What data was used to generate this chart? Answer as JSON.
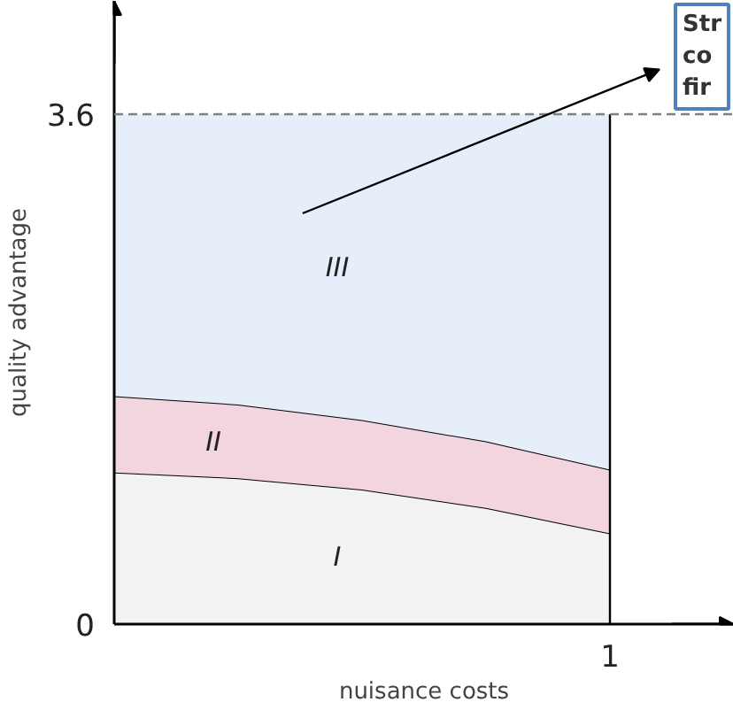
{
  "chart_data": {
    "type": "area",
    "stacked": true,
    "xlabel": "nuisance costs",
    "ylabel": "quality advantage",
    "categories": [
      null,
      null,
      null,
      null,
      "1"
    ],
    "series": [
      {
        "name": "I",
        "color": "#f2f2f2",
        "values": [
          1.07,
          1.03,
          0.95,
          0.82,
          0.64
        ]
      },
      {
        "name": "II",
        "color": "#f2d5df",
        "values": [
          0.54,
          0.52,
          0.49,
          0.47,
          0.45
        ]
      },
      {
        "name": "III",
        "color": "#e6eefa",
        "values": [
          1.99,
          2.05,
          2.16,
          2.31,
          2.51
        ]
      }
    ],
    "ylim": [
      0,
      4.4
    ],
    "yticks": [
      0,
      3.6
    ],
    "ref_lines": [
      {
        "axis": "y",
        "value": 3.6,
        "label": null,
        "color": "#808080",
        "line_style": "dashed"
      }
    ],
    "annotations": [
      "Str\nco\nfir"
    ],
    "grid": false,
    "legend": false
  }
}
